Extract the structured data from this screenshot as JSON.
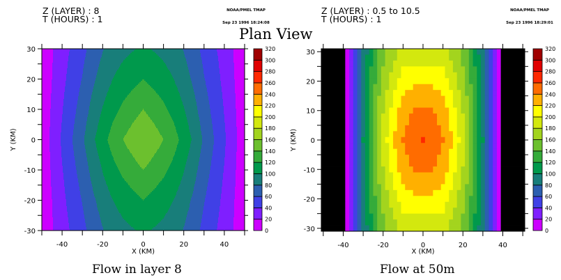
{
  "page_title": "Plan View",
  "credit_line1": "NOAA/PMEL TMAP",
  "level_colors": [
    "#cc00ff",
    "#7f1fff",
    "#4040e6",
    "#2c5fb0",
    "#187e7a",
    "#00994c",
    "#35ab3a",
    "#6cc02e",
    "#a3d41e",
    "#d3e80e",
    "#ffff00",
    "#ffb000",
    "#ff6c00",
    "#ff2800",
    "#e00000",
    "#a00000"
  ],
  "mask_color": "#000000",
  "chart_data": [
    {
      "type": "heatmap",
      "style": "filled-contour",
      "title": "Flow in layer 8",
      "header_z": "Z (LAYER) : 8",
      "header_t": "T (HOURS) : 1",
      "timestamp": "Sep 23 1996 18:24:08",
      "xlabel": "X (KM)",
      "ylabel": "Y (KM)",
      "xlim": [
        -50,
        50
      ],
      "ylim": [
        -30,
        30
      ],
      "x_tick_labels": [
        "-40",
        "-20",
        "0",
        "20",
        "40"
      ],
      "y_tick_labels": [
        "30",
        "20",
        "10",
        "0",
        "-10",
        "-20",
        "-30"
      ],
      "levels": [
        0,
        20,
        40,
        60,
        80,
        100,
        120,
        140,
        160,
        180,
        200,
        220,
        240,
        260,
        280,
        300,
        320
      ],
      "level_labels": [
        "0",
        "20",
        "40",
        "60",
        "80",
        "100",
        "120",
        "140",
        "160",
        "180",
        "200",
        "220",
        "240",
        "260",
        "280",
        "300",
        "320"
      ],
      "profile_along_x_at_y0": {
        "x": [
          0,
          5,
          10,
          15,
          20,
          25,
          30,
          35,
          40,
          45,
          50
        ],
        "value": [
          160,
          150,
          140,
          128,
          113,
          96,
          77,
          60,
          43,
          24,
          8
        ]
      },
      "profile_along_y_at_x0": {
        "y": [
          0,
          10,
          20,
          30
        ],
        "value": [
          160,
          140,
          120,
          103
        ]
      },
      "y_influence_halfwidth_km": 50,
      "grid": "none"
    },
    {
      "type": "heatmap",
      "style": "cell-fill",
      "title": "Flow at 50m",
      "header_z": "Z (LAYER) : 0.5 to 10.5",
      "header_t": "T (HOURS) : 1",
      "timestamp": "Sep 23 1996 18:29:01",
      "xlabel": "X (KM)",
      "ylabel": "Y (KM)",
      "xlim": [
        -51,
        51
      ],
      "ylim": [
        -31,
        31
      ],
      "cell_size_km": 2,
      "x_tick_labels": [
        "-40",
        "-20",
        "0",
        "20",
        "40"
      ],
      "y_tick_labels": [
        "30",
        "20",
        "10",
        "0",
        "-10",
        "-20",
        "-30"
      ],
      "levels": [
        0,
        20,
        40,
        60,
        80,
        100,
        120,
        140,
        160,
        180,
        200,
        220,
        240,
        260,
        280,
        300,
        320
      ],
      "level_labels": [
        "0",
        "20",
        "40",
        "60",
        "80",
        "100",
        "120",
        "140",
        "160",
        "180",
        "200",
        "220",
        "240",
        "260",
        "280",
        "300",
        "320"
      ],
      "profile_along_x_at_y0": {
        "x": [
          0,
          5,
          10,
          15,
          20,
          25,
          30,
          35,
          38
        ],
        "value": [
          260,
          255,
          242,
          218,
          188,
          148,
          100,
          40,
          10
        ]
      },
      "profile_along_y_at_x0": {
        "y": [
          0,
          10,
          20,
          30
        ],
        "value": [
          260,
          243,
          216,
          185
        ]
      },
      "y_influence_halfwidth_km": 38,
      "masked_beyond_abs_x_km": 38,
      "grid": "none"
    }
  ]
}
